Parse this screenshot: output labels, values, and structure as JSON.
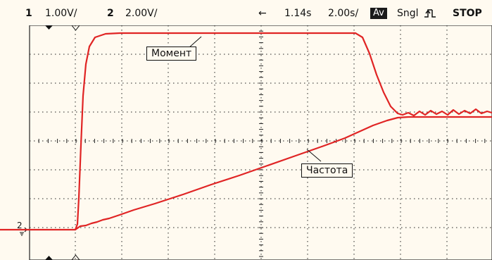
{
  "topbar": {
    "ch1_number": "1",
    "ch1_scale": "1.00V/",
    "ch2_number": "2",
    "ch2_scale": "2.00V/",
    "arrow_glyph": "←",
    "time_offset": "1.14s",
    "time_scale": "2.00s/",
    "acq_mode": "Av",
    "trigger_mode": "Sngl",
    "edge_glyph": "ƭʟ",
    "run_state": "STOP"
  },
  "traces": {
    "moment_label": "Момент",
    "frequency_label": "Частота",
    "trace_color": "#e02424"
  },
  "markers": {
    "ch2_ground_number": "2"
  },
  "colors": {
    "background": "#fffaf0",
    "grid": "#222222",
    "trace": "#e02424"
  }
}
